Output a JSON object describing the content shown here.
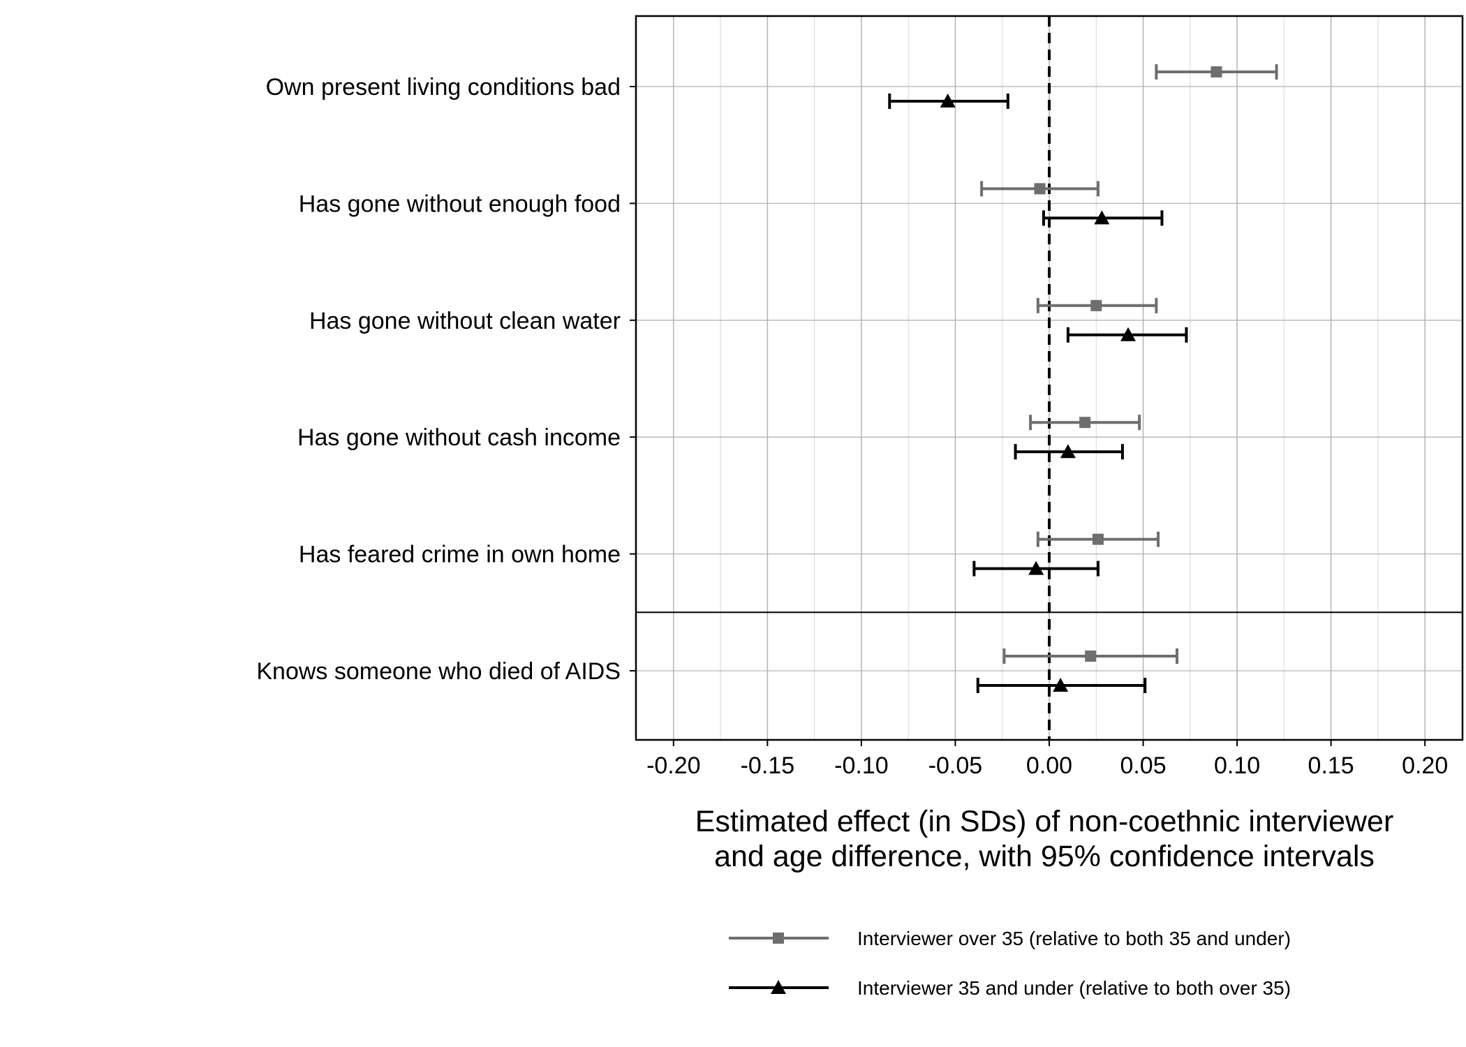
{
  "chart_data": {
    "type": "forest",
    "categories": [
      "Own present living conditions bad",
      "Has gone without enough food",
      "Has gone without clean water",
      "Has gone without cash income",
      "Has feared crime in own home",
      "Knows someone who died of AIDS"
    ],
    "series": [
      {
        "name": "Interviewer over 35 (relative to both 35 and under)",
        "color": "#6e6e6e",
        "marker": "square",
        "estimates": [
          0.089,
          -0.005,
          0.025,
          0.019,
          0.026,
          0.022
        ],
        "ci_low": [
          0.057,
          -0.036,
          -0.006,
          -0.01,
          -0.006,
          -0.024
        ],
        "ci_high": [
          0.121,
          0.026,
          0.057,
          0.048,
          0.058,
          0.068
        ]
      },
      {
        "name": "Interviewer 35 and under (relative to both over 35)",
        "color": "#000000",
        "marker": "triangle",
        "estimates": [
          -0.054,
          0.028,
          0.042,
          0.01,
          -0.007,
          0.006
        ],
        "ci_low": [
          -0.085,
          -0.003,
          0.01,
          -0.018,
          -0.04,
          -0.038
        ],
        "ci_high": [
          -0.022,
          0.06,
          0.073,
          0.039,
          0.026,
          0.051
        ]
      }
    ],
    "xlim": [
      -0.22,
      0.22
    ],
    "x_ticks": [
      "-0.20",
      "-0.15",
      "-0.10",
      "-0.05",
      "0.00",
      "0.05",
      "0.10",
      "0.15",
      "0.20"
    ],
    "xlabel_line1": "Estimated effect (in SDs) of non-coethnic interviewer",
    "xlabel_line2": "and age difference, with 95% confidence intervals",
    "reference_line": 0,
    "separator_after_category": 5,
    "grid": true,
    "legend_position": "bottom"
  }
}
